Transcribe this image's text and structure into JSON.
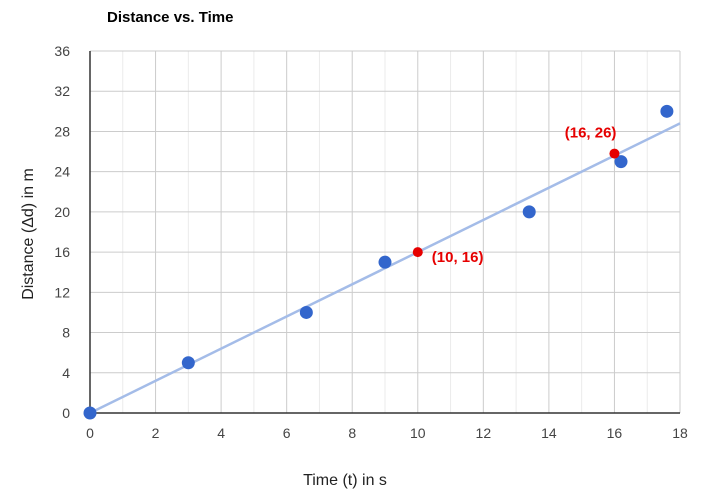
{
  "chart_data": {
    "type": "scatter",
    "title": "Distance vs. Time",
    "xlabel": "Time (t) in s",
    "ylabel": "Distance (Δd) in m",
    "xlim": [
      0,
      18
    ],
    "ylim": [
      0,
      36
    ],
    "x_ticks": [
      0,
      2,
      4,
      6,
      8,
      10,
      12,
      14,
      16,
      18
    ],
    "y_ticks": [
      0,
      4,
      8,
      12,
      16,
      20,
      24,
      28,
      32,
      36
    ],
    "grid": true,
    "series": [
      {
        "points": [
          {
            "x": 0,
            "y": 0
          },
          {
            "x": 3,
            "y": 5
          },
          {
            "x": 6.6,
            "y": 10
          },
          {
            "x": 9,
            "y": 15
          },
          {
            "x": 13.4,
            "y": 20
          },
          {
            "x": 16.2,
            "y": 25
          },
          {
            "x": 17.6,
            "y": 30
          }
        ],
        "color": "#3366cc"
      }
    ],
    "trendline": {
      "x": [
        0,
        18
      ],
      "y": [
        0,
        28.8
      ],
      "color": "#a4bce8"
    },
    "annotations": [
      {
        "x": 10,
        "y": 16,
        "label": "(10, 16)",
        "color": "#e60000",
        "label_position": "right"
      },
      {
        "x": 16,
        "y": 25.8,
        "label": "(16, 26)",
        "color": "#e60000",
        "label_position": "above-left"
      }
    ]
  }
}
